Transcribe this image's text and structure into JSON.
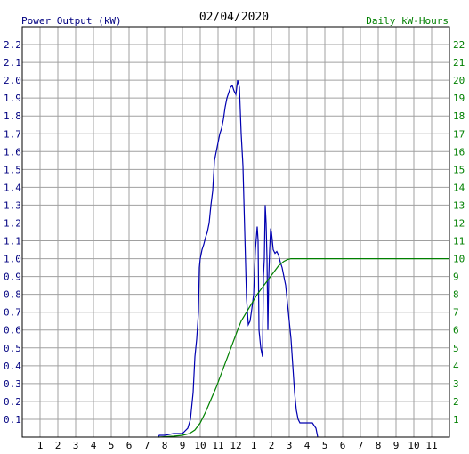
{
  "chart_data": {
    "type": "line",
    "title": "02/04/2020",
    "left_axis_label": "Power Output (kW)",
    "right_axis_label": "Daily kW-Hours",
    "left_ylim": [
      0,
      2.3
    ],
    "right_ylim": [
      0,
      23
    ],
    "left_ticks": [
      "0.1",
      "0.2",
      "0.3",
      "0.4",
      "0.5",
      "0.6",
      "0.7",
      "0.8",
      "0.9",
      "1.0",
      "1.1",
      "1.2",
      "1.3",
      "1.4",
      "1.5",
      "1.6",
      "1.7",
      "1.8",
      "1.9",
      "2.0",
      "2.1",
      "2.2"
    ],
    "right_ticks": [
      "1",
      "2",
      "3",
      "4",
      "5",
      "6",
      "7",
      "8",
      "9",
      "10",
      "11",
      "12",
      "13",
      "14",
      "15",
      "16",
      "17",
      "18",
      "19",
      "20",
      "21",
      "22"
    ],
    "x_ticks": [
      "1",
      "2",
      "3",
      "4",
      "5",
      "6",
      "7",
      "8",
      "9",
      "10",
      "11",
      "12",
      "1",
      "2",
      "3",
      "4",
      "5",
      "6",
      "7",
      "8",
      "9",
      "10",
      "11"
    ],
    "xlim_hours": [
      0,
      24
    ],
    "grid": true,
    "colors": {
      "power": "#0000b0",
      "energy": "#008000",
      "grid": "#a0a0a0",
      "left_axis": "#000080",
      "right_axis": "#008000"
    },
    "series": [
      {
        "name": "Power Output (kW)",
        "axis": "left",
        "points": [
          [
            7.65,
            0
          ],
          [
            7.7,
            0.01
          ],
          [
            8.0,
            0.01
          ],
          [
            8.5,
            0.02
          ],
          [
            9.0,
            0.02
          ],
          [
            9.3,
            0.05
          ],
          [
            9.45,
            0.1
          ],
          [
            9.5,
            0.15
          ],
          [
            9.6,
            0.25
          ],
          [
            9.7,
            0.45
          ],
          [
            9.8,
            0.55
          ],
          [
            9.9,
            0.7
          ],
          [
            9.95,
            0.95
          ],
          [
            10.0,
            1.0
          ],
          [
            10.1,
            1.05
          ],
          [
            10.2,
            1.08
          ],
          [
            10.3,
            1.12
          ],
          [
            10.4,
            1.15
          ],
          [
            10.5,
            1.2
          ],
          [
            10.6,
            1.3
          ],
          [
            10.7,
            1.38
          ],
          [
            10.8,
            1.55
          ],
          [
            10.9,
            1.6
          ],
          [
            11.0,
            1.65
          ],
          [
            11.1,
            1.7
          ],
          [
            11.2,
            1.73
          ],
          [
            11.3,
            1.78
          ],
          [
            11.4,
            1.85
          ],
          [
            11.5,
            1.9
          ],
          [
            11.6,
            1.93
          ],
          [
            11.7,
            1.96
          ],
          [
            11.8,
            1.97
          ],
          [
            11.9,
            1.94
          ],
          [
            12.0,
            1.92
          ],
          [
            12.1,
            2.0
          ],
          [
            12.2,
            1.96
          ],
          [
            12.3,
            1.7
          ],
          [
            12.4,
            1.52
          ],
          [
            12.5,
            1.15
          ],
          [
            12.6,
            0.78
          ],
          [
            12.7,
            0.63
          ],
          [
            12.8,
            0.65
          ],
          [
            12.9,
            0.72
          ],
          [
            13.0,
            0.8
          ],
          [
            13.1,
            1.05
          ],
          [
            13.2,
            1.18
          ],
          [
            13.25,
            1.1
          ],
          [
            13.3,
            0.6
          ],
          [
            13.4,
            0.5
          ],
          [
            13.5,
            0.45
          ],
          [
            13.55,
            0.9
          ],
          [
            13.6,
            1.0
          ],
          [
            13.65,
            1.3
          ],
          [
            13.7,
            1.2
          ],
          [
            13.75,
            1.0
          ],
          [
            13.8,
            0.6
          ],
          [
            13.85,
            0.9
          ],
          [
            13.9,
            1.05
          ],
          [
            13.95,
            1.16
          ],
          [
            14.0,
            1.15
          ],
          [
            14.1,
            1.05
          ],
          [
            14.2,
            1.03
          ],
          [
            14.3,
            1.04
          ],
          [
            14.4,
            1.02
          ],
          [
            14.5,
            0.98
          ],
          [
            14.6,
            0.95
          ],
          [
            14.7,
            0.9
          ],
          [
            14.8,
            0.85
          ],
          [
            14.9,
            0.75
          ],
          [
            15.0,
            0.65
          ],
          [
            15.1,
            0.55
          ],
          [
            15.2,
            0.4
          ],
          [
            15.3,
            0.25
          ],
          [
            15.4,
            0.15
          ],
          [
            15.5,
            0.1
          ],
          [
            15.6,
            0.08
          ],
          [
            15.8,
            0.08
          ],
          [
            16.0,
            0.08
          ],
          [
            16.3,
            0.08
          ],
          [
            16.5,
            0.05
          ],
          [
            16.6,
            0.0
          ]
        ]
      },
      {
        "name": "Daily kW-Hours",
        "axis": "right",
        "points": [
          [
            7.65,
            0
          ],
          [
            8.5,
            0.05
          ],
          [
            9.0,
            0.1
          ],
          [
            9.4,
            0.2
          ],
          [
            9.7,
            0.4
          ],
          [
            10.0,
            0.8
          ],
          [
            10.3,
            1.4
          ],
          [
            10.6,
            2.1
          ],
          [
            10.9,
            2.8
          ],
          [
            11.2,
            3.6
          ],
          [
            11.5,
            4.4
          ],
          [
            11.8,
            5.2
          ],
          [
            12.1,
            6.0
          ],
          [
            12.3,
            6.5
          ],
          [
            12.6,
            7.0
          ],
          [
            12.9,
            7.5
          ],
          [
            13.2,
            8.0
          ],
          [
            13.5,
            8.4
          ],
          [
            13.8,
            8.8
          ],
          [
            14.1,
            9.2
          ],
          [
            14.4,
            9.6
          ],
          [
            14.7,
            9.85
          ],
          [
            14.9,
            9.95
          ],
          [
            15.1,
            10.0
          ],
          [
            24.0,
            10.0
          ]
        ]
      }
    ]
  }
}
